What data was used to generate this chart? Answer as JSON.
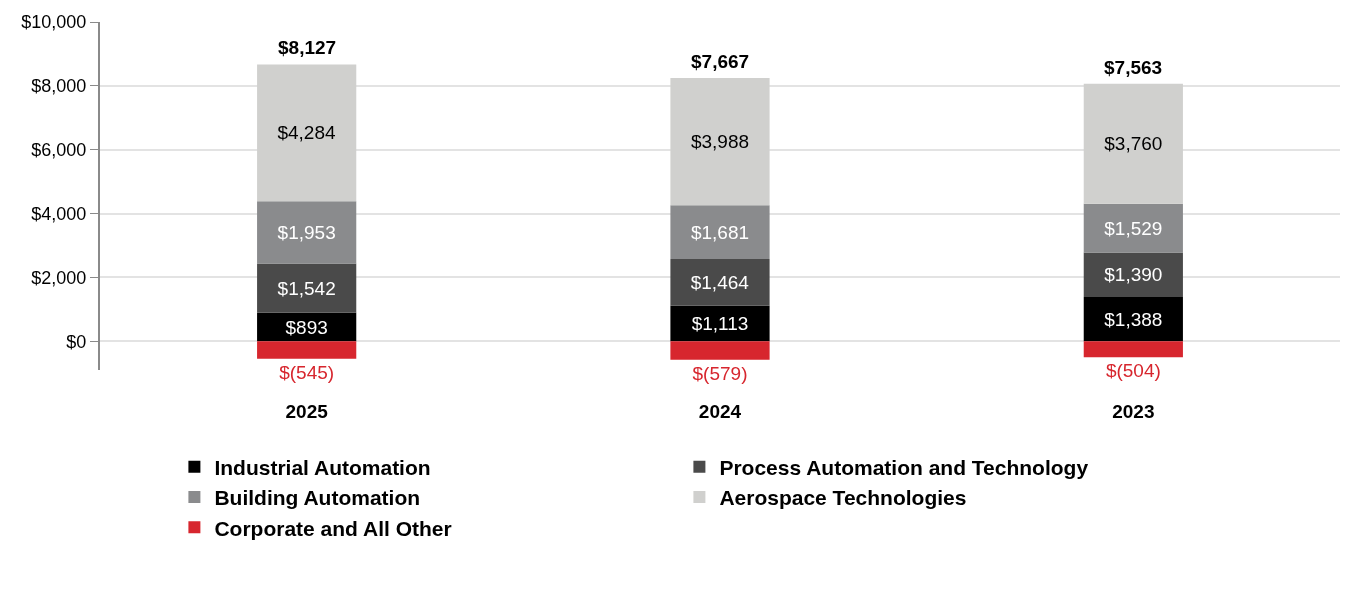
{
  "chart_data": {
    "type": "bar",
    "stacked": true,
    "categories": [
      "2025",
      "2024",
      "2023"
    ],
    "series": [
      {
        "name": "Industrial Automation",
        "color": "#000000",
        "values": [
          893,
          1113,
          1388
        ],
        "value_labels": [
          "$893",
          "$1,113",
          "$1,388"
        ]
      },
      {
        "name": "Process Automation and Technology",
        "color": "#4a4a4a",
        "values": [
          1542,
          1464,
          1390
        ],
        "value_labels": [
          "$1,542",
          "$1,464",
          "$1,390"
        ]
      },
      {
        "name": "Building Automation",
        "color": "#8a8b8d",
        "values": [
          1953,
          1681,
          1529
        ],
        "value_labels": [
          "$1,953",
          "$1,681",
          "$1,529"
        ]
      },
      {
        "name": "Aerospace Technologies",
        "color": "#d0d0ce",
        "values": [
          4284,
          3988,
          3760
        ],
        "value_labels": [
          "$4,284",
          "$3,988",
          "$3,760"
        ]
      },
      {
        "name": "Corporate and All Other",
        "color": "#d7262e",
        "values": [
          -545,
          -579,
          -504
        ],
        "value_labels": [
          "$(545)",
          "$(579)",
          "$(504)"
        ]
      }
    ],
    "totals": [
      "$8,127",
      "$7,667",
      "$7,563"
    ],
    "ylim": [
      -900,
      10000
    ],
    "yticks": [
      {
        "value": 0,
        "label": "$0"
      },
      {
        "value": 2000,
        "label": "$2,000"
      },
      {
        "value": 4000,
        "label": "$4,000"
      },
      {
        "value": 6000,
        "label": "$6,000"
      },
      {
        "value": 8000,
        "label": "$8,000"
      },
      {
        "value": 10000,
        "label": "$10,000"
      }
    ],
    "grid": "y",
    "legend": "bottom"
  }
}
